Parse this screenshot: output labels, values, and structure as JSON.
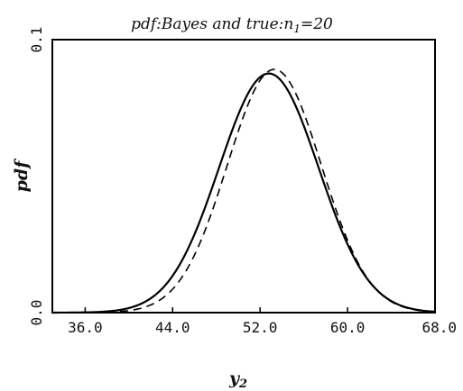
{
  "chart_data": {
    "type": "line",
    "title": "pdf:Bayes and true:n",
    "title_sub": "1",
    "title_suffix": "=20",
    "xlabel": "y",
    "xlabel_sub": "2",
    "ylabel": "pdf",
    "xlim": [
      33.0,
      68.0
    ],
    "ylim": [
      0.0,
      0.1
    ],
    "x_ticks": [
      "36.0",
      "44.0",
      "52.0",
      "60.0",
      "68.0"
    ],
    "y_ticks": [
      "0.0",
      "0.1"
    ],
    "grid": false,
    "legend": "none",
    "series": [
      {
        "style": "solid",
        "color": "#000000",
        "mean": 52.8,
        "sd": 4.55,
        "x": [
          33,
          36,
          40,
          44,
          48,
          52.8,
          56,
          60,
          64,
          68
        ],
        "y": [
          0.0006,
          0.0011,
          0.0042,
          0.0206,
          0.0502,
          0.0876,
          0.0717,
          0.0285,
          0.0061,
          0.0009
        ]
      },
      {
        "style": "dashed",
        "color": "#000000",
        "mean": 53.3,
        "sd": 4.3,
        "x": [
          33,
          36,
          40,
          44,
          48,
          53.3,
          56,
          60,
          64,
          68
        ],
        "y": [
          0.0,
          0.0009,
          0.003,
          0.0142,
          0.0437,
          0.0891,
          0.0728,
          0.027,
          0.0044,
          0.0003
        ]
      }
    ]
  }
}
